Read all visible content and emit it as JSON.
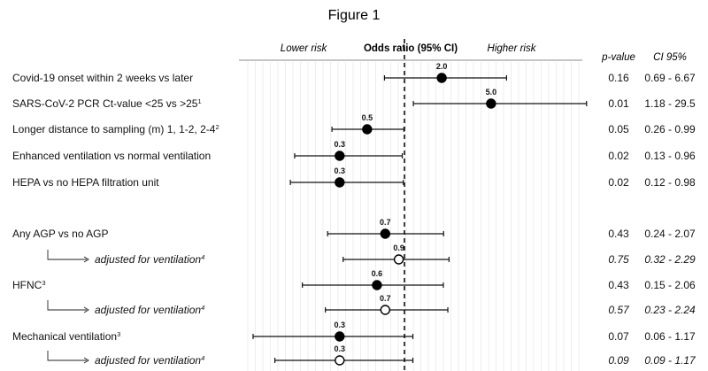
{
  "figure_title": "Figure 1",
  "headers": {
    "lower": "Lower risk",
    "center": "Odds ratio (95% CI)",
    "higher": "Higher risk",
    "pvalue": "p-value",
    "ci": "CI 95%"
  },
  "chart_data": {
    "type": "forest",
    "title": "Figure 1",
    "xlabel": "Odds ratio (95% CI)",
    "reference_line": 1,
    "x_scale": "log",
    "xlim": [
      0.05,
      35
    ],
    "grid": true,
    "rows": [
      {
        "label": "Covid-19 onset within 2 weeks vs later",
        "sup": "",
        "adjusted": false,
        "or": 2.0,
        "or_text": "2.0",
        "lo": 0.69,
        "hi": 6.67,
        "p": "0.16",
        "ci": "0.69 - 6.67"
      },
      {
        "label": "SARS-CoV-2 PCR Ct-value <25 vs >25",
        "sup": "1",
        "adjusted": false,
        "or": 5.0,
        "or_text": "5.0",
        "lo": 1.18,
        "hi": 29.5,
        "p": "0.01",
        "ci": "1.18 - 29.5"
      },
      {
        "label": "Longer distance to sampling (m) 1, 1-2, 2-4",
        "sup": "2",
        "adjusted": false,
        "or": 0.5,
        "or_text": "0.5",
        "lo": 0.26,
        "hi": 0.99,
        "p": "0.05",
        "ci": "0.26 - 0.99"
      },
      {
        "label": "Enhanced ventilation vs normal ventilation",
        "sup": "",
        "adjusted": false,
        "or": 0.3,
        "or_text": "0.3",
        "lo": 0.13,
        "hi": 0.96,
        "p": "0.02",
        "ci": "0.13 - 0.96"
      },
      {
        "label": "HEPA vs no HEPA filtration unit",
        "sup": "",
        "adjusted": false,
        "or": 0.3,
        "or_text": "0.3",
        "lo": 0.12,
        "hi": 0.98,
        "p": "0.02",
        "ci": "0.12 - 0.98"
      },
      {
        "label": "Any AGP vs no AGP",
        "sup": "",
        "adjusted": false,
        "or": 0.7,
        "or_text": "0.7",
        "lo": 0.24,
        "hi": 2.07,
        "p": "0.43",
        "ci": "0.24 - 2.07"
      },
      {
        "label": "adjusted for ventilation",
        "sup": "4",
        "adjusted": true,
        "or": 0.9,
        "or_text": "0.9",
        "lo": 0.32,
        "hi": 2.29,
        "p": "0.75",
        "ci": "0.32 - 2.29"
      },
      {
        "label": "HFNC",
        "sup": "3",
        "adjusted": false,
        "or": 0.6,
        "or_text": "0.6",
        "lo": 0.15,
        "hi": 2.06,
        "p": "0.43",
        "ci": "0.15 - 2.06"
      },
      {
        "label": "adjusted for ventilation",
        "sup": "4",
        "adjusted": true,
        "or": 0.7,
        "or_text": "0.7",
        "lo": 0.23,
        "hi": 2.24,
        "p": "0.57",
        "ci": "0.23 - 2.24"
      },
      {
        "label": "Mechanical ventilation",
        "sup": "3",
        "adjusted": false,
        "or": 0.3,
        "or_text": "0.3",
        "lo": 0.06,
        "hi": 1.17,
        "p": "0.07",
        "ci": "0.06 - 1.17"
      },
      {
        "label": "adjusted for ventilation",
        "sup": "4",
        "adjusted": true,
        "or": 0.3,
        "or_text": "0.3",
        "lo": 0.09,
        "hi": 1.17,
        "p": "0.09",
        "ci": "0.09 - 1.17"
      }
    ]
  }
}
